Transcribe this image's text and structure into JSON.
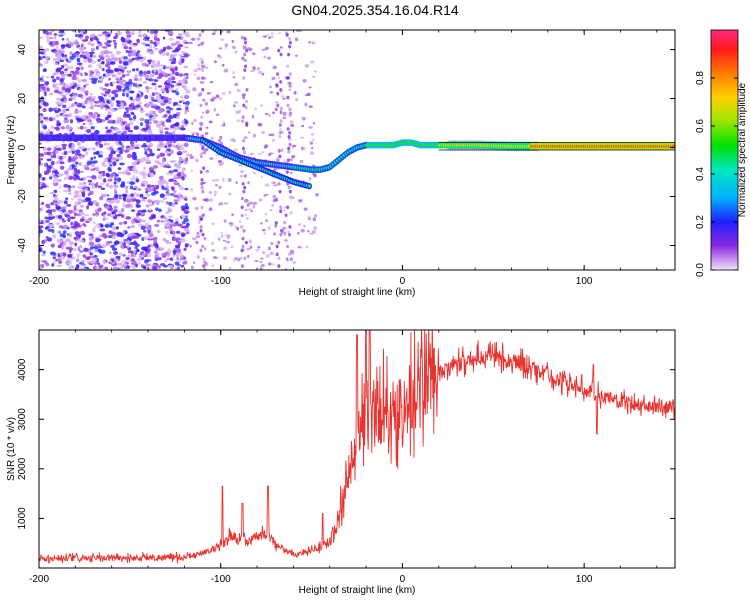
{
  "title": "GN04.2025.354.16.04.R14",
  "chart_data": [
    {
      "type": "heatmap",
      "title": "GN04.2025.354.16.04.R14",
      "xlabel": "Height of straight line (km)",
      "ylabel": "Frequency (Hz)",
      "xlim": [
        -200,
        150
      ],
      "ylim": [
        -50,
        48
      ],
      "xticks": [
        -200,
        -100,
        0,
        100
      ],
      "yticks": [
        -40,
        -20,
        0,
        20,
        40
      ],
      "colorbar": {
        "label": "Normalized spectral amplitude",
        "range": [
          0,
          1
        ],
        "ticks": [
          0.0,
          0.2,
          0.4,
          0.6,
          0.8
        ]
      },
      "ridge_main": {
        "x": [
          -200,
          -180,
          -160,
          -140,
          -120,
          -110,
          -100,
          -90,
          -80,
          -70,
          -60,
          -50,
          -45,
          -40,
          -35,
          -30,
          -25,
          -20,
          -15,
          -10,
          -5,
          0,
          5,
          10,
          20,
          30,
          40,
          60,
          80,
          100,
          120,
          150
        ],
        "y": [
          4,
          4,
          4,
          4,
          4,
          3,
          0,
          -4,
          -6,
          -7,
          -8,
          -9,
          -9,
          -8,
          -5,
          -2,
          0,
          1,
          1,
          1,
          1,
          2,
          2,
          1,
          1,
          1,
          1,
          0.5,
          0.5,
          0.5,
          0.5,
          0.5
        ]
      },
      "ridge_branch": {
        "x": [
          -110,
          -100,
          -90,
          -80,
          -70,
          -60,
          -50
        ],
        "y": [
          3,
          -2,
          -5,
          -8,
          -11,
          -14,
          -16
        ]
      }
    },
    {
      "type": "line",
      "xlabel": "Height of straight line (km)",
      "ylabel": "SNR (10 * v/v)",
      "xlim": [
        -200,
        150
      ],
      "ylim": [
        0,
        4800
      ],
      "xticks": [
        -200,
        -100,
        0,
        100
      ],
      "yticks": [
        1000,
        2000,
        3000,
        4000
      ],
      "color": "#e8322e",
      "envelope": {
        "x": [
          -200,
          -180,
          -160,
          -140,
          -120,
          -110,
          -100,
          -95,
          -90,
          -85,
          -80,
          -75,
          -70,
          -65,
          -60,
          -55,
          -50,
          -45,
          -40,
          -35,
          -30,
          -25,
          -20,
          -15,
          -10,
          -5,
          0,
          5,
          10,
          15,
          20,
          30,
          40,
          50,
          60,
          70,
          80,
          90,
          100,
          110,
          120,
          130,
          140,
          150
        ],
        "y": [
          180,
          190,
          200,
          210,
          220,
          300,
          450,
          650,
          600,
          500,
          650,
          700,
          500,
          380,
          280,
          300,
          350,
          420,
          550,
          1000,
          1800,
          2700,
          3200,
          3200,
          3100,
          3150,
          3200,
          3450,
          3650,
          3750,
          3900,
          4100,
          4250,
          4300,
          4200,
          4050,
          3900,
          3750,
          3600,
          3450,
          3350,
          3300,
          3250,
          3250
        ]
      },
      "spikes": [
        {
          "x": -99,
          "y": 1650
        },
        {
          "x": -88,
          "y": 1300
        },
        {
          "x": -74,
          "y": 1650
        },
        {
          "x": -44,
          "y": 1100
        },
        {
          "x": -25,
          "y": 4700
        },
        {
          "x": -20,
          "y": 4800
        },
        {
          "x": -18,
          "y": 4800
        },
        {
          "x": 105,
          "y": 4100
        },
        {
          "x": 107,
          "y": 2700
        }
      ]
    }
  ]
}
